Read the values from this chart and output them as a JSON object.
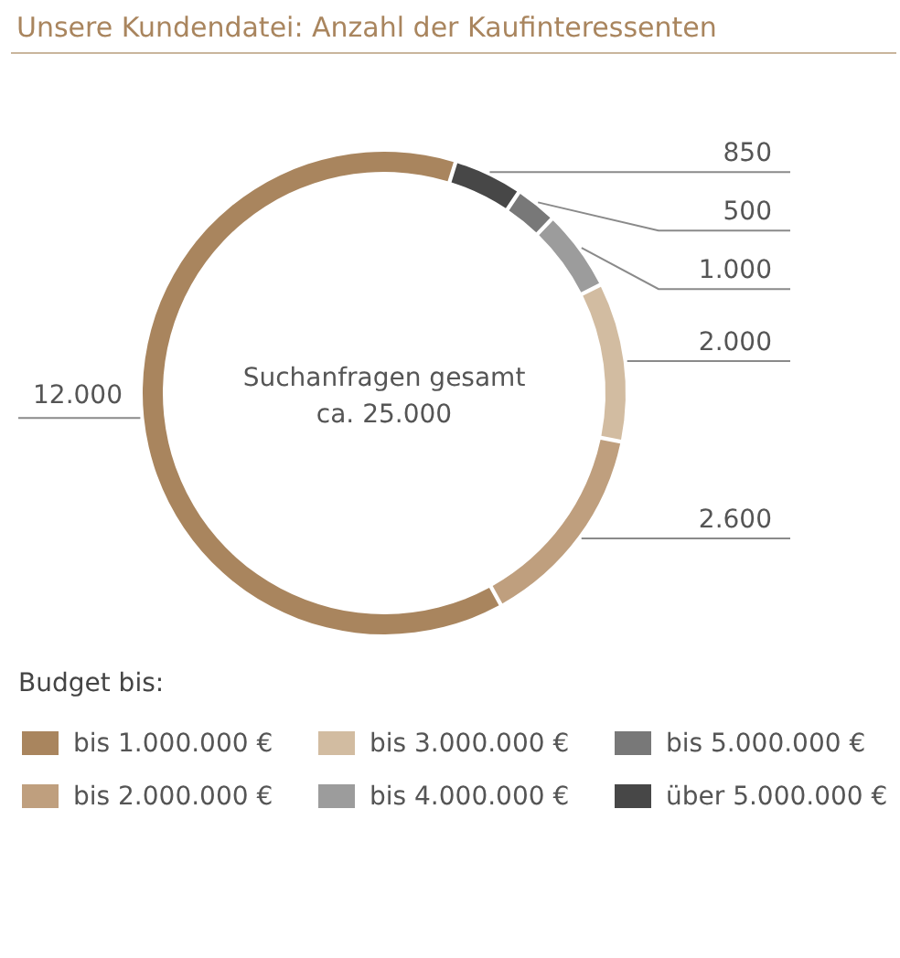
{
  "chart_data": {
    "type": "donut",
    "title": "Unsere Kundendatei: Anzahl der Kaufinteressenten",
    "categories": [
      "bis 1.000.000 €",
      "bis 2.000.000 €",
      "bis 3.000.000 €",
      "bis 4.000.000 €",
      "bis 5.000.000 €",
      "über 5.000.000 €"
    ],
    "values": [
      12000,
      2600,
      2000,
      1000,
      500,
      850
    ],
    "value_labels": [
      "12.000",
      "2.600",
      "2.000",
      "1.000",
      "500",
      "850"
    ],
    "colors": [
      "#a9855e",
      "#bf9f7e",
      "#d2bca1",
      "#9c9c9c",
      "#787878",
      "#474747"
    ],
    "legend_title": "Budget bis:",
    "legend": "bottom",
    "annotations": [
      "Suchanfragen gesamt",
      "ca. 25.000"
    ]
  }
}
